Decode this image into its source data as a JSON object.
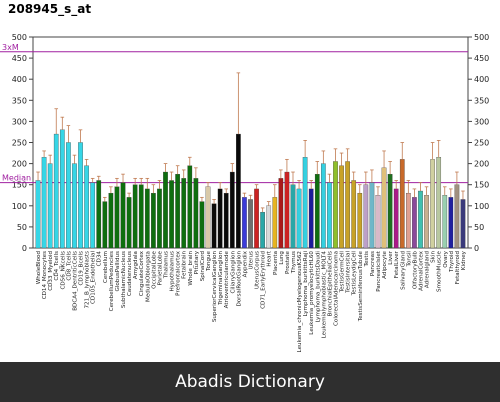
{
  "chart_data": {
    "type": "bar",
    "title": "208945_s_at",
    "ylim": [
      0,
      500
    ],
    "yticks": [
      0,
      50,
      100,
      150,
      200,
      250,
      300,
      350,
      400,
      450,
      500
    ],
    "grid": false,
    "reference_lines": [
      {
        "label": "3xM",
        "value": 465,
        "color": "#a020a0"
      },
      {
        "label": "Median",
        "value": 155,
        "color": "#a020a0"
      }
    ],
    "categories": [
      "WholeBlood",
      "CD14_Monocytes",
      "CD33_Myeloid",
      "CD4_Tcells",
      "CD56_NKcells",
      "CD8_Tcells",
      "BDCA4_DentriticCells",
      "CD19_Bcells",
      "721_B_lymphoblasts",
      "CD105_Endothelial",
      "CD34",
      "Cerebellum",
      "CerebellumPeduncles",
      "GlobusPallidus",
      "SubthalamicNucleus",
      "Caudatenucleus",
      "Amygdala",
      "CingulateCortex",
      "MedullaOblongata",
      "OccipitalLobe",
      "ParietalLobe",
      "Thalamus",
      "Hypothalamus",
      "Prefrontalcortex",
      "Fetalbrain",
      "Whole_brain",
      "Pituitary",
      "SpinalCord",
      "Tongue",
      "SuperiorCervicalGanglion",
      "TrigeminalGanglion",
      "Atrioventricularnode",
      "CiliaryGanglion",
      "DorsalRootGanglion",
      "Appendix",
      "Uterus",
      "UterusCorpus",
      "CD71_EarlyErythroid",
      "Heart",
      "Placenta",
      "Lung",
      "Prostate",
      "Thymus",
      "Leukemia_chronicMyelogenousK562",
      "Lymphoma_burkittsRaji",
      "Leukemia_promyelocyticHL60",
      "Lymphoma_burkittsDaudi",
      "Leukemialymphoblastic_MOLT4",
      "BronchialEpithelialCells",
      "ColorectalAdenocarcinoma",
      "TestisGermCell",
      "TestisIntersitial",
      "TestisLeydigCell",
      "TestisSeminiferousTubule",
      "Testis",
      "Pancreas",
      "PancreaticIslet",
      "Adipocyte",
      "Liver",
      "FetalLiver",
      "SalivaryGland",
      "Tonsil",
      "OlfactoryBulb",
      "AdrenalCortex",
      "Adrenalgland",
      "Skin",
      "SmoothMuscle",
      "Ovary",
      "Thyroid",
      "Fetalthyroid",
      "Kidney"
    ],
    "visible_xtick_labels": [
      "WholeBlood",
      "CD14_Monocytes",
      "CD33_Myeloid",
      "CD4_Tcells",
      "CD56_NKcells",
      "CD8_Tcells",
      "BDCA4_DentriticCells",
      "CD19_Bcells",
      "721_B_lymphoblasts",
      "CD105_Endothelial",
      "CD34",
      "Cerebellum",
      "CerebellumPeduncles",
      "GlobusPallidus",
      "SubthalamicNucleus",
      "Caudatenucleus",
      "Amygdala",
      "CingulateCortex",
      "MedullaOblongata",
      "OccipitalLobe",
      "ParietalLobe",
      "Thalamus",
      "Hypothalamus",
      "Prefrontalcortex",
      "Fetalbrain",
      "Whole_brain",
      "Pituitary",
      "SpinalCord",
      "Tongue",
      "SuperiorCervicalGanglion",
      "TrigeminalGanglion",
      "Atrioventricularnode",
      "CiliaryGanglion",
      "DorsalRootGanglion",
      "Appendix",
      "Uterus",
      "UterusCorpus",
      "CD71_EarlyErythroid",
      "Heart",
      "Placenta",
      "Lung",
      "Prostate",
      "Thymus",
      "Leukemia_chronicMyelogenousK562",
      "Lymphoma_burkittsRaji",
      "Leukemia_promyelocyticHL60",
      "Lymphoma_burkittsDaudi",
      "Leukemialymphoblastic_MOLT4",
      "BronchialEpithelialCells",
      "ColorectalAdenocarcinoma",
      "TestisGermCell",
      "TestisIntersitial",
      "TestisLeydigCell",
      "TestisSeminiferousTubule",
      "Testis",
      "Pancreas",
      "PancreaticIslet",
      "Adipocyte",
      "Liver",
      "FetalLiver",
      "SalivaryGland",
      "Tonsil",
      "OlfactoryBulb",
      "AdrenalCortex",
      "Adrenalgland",
      "Skin",
      "SmoothMuscle",
      "Ovary",
      "Thyroid",
      "Fetalthyroid",
      "Kidney"
    ],
    "values": [
      160,
      215,
      200,
      270,
      280,
      250,
      200,
      250,
      195,
      155,
      160,
      110,
      130,
      145,
      155,
      120,
      150,
      150,
      140,
      130,
      140,
      180,
      160,
      175,
      165,
      195,
      165,
      110,
      145,
      105,
      140,
      130,
      180,
      270,
      120,
      115,
      140,
      85,
      100,
      120,
      165,
      180,
      150,
      140,
      215,
      140,
      175,
      200,
      155,
      205,
      195,
      205,
      160,
      130,
      150,
      155,
      125,
      190,
      175,
      140,
      210,
      130,
      120,
      135,
      125,
      210,
      215,
      125,
      120,
      150,
      115
    ],
    "errors": [
      20,
      15,
      20,
      60,
      30,
      40,
      20,
      30,
      15,
      10,
      10,
      10,
      15,
      20,
      20,
      10,
      15,
      15,
      25,
      20,
      20,
      20,
      20,
      20,
      20,
      20,
      25,
      10,
      10,
      10,
      15,
      10,
      20,
      145,
      10,
      10,
      10,
      10,
      10,
      30,
      20,
      30,
      30,
      20,
      40,
      20,
      30,
      30,
      20,
      30,
      30,
      30,
      20,
      20,
      30,
      30,
      20,
      40,
      30,
      20,
      40,
      30,
      20,
      20,
      20,
      40,
      40,
      20,
      20,
      30,
      20
    ],
    "colors": [
      "#36d6e6",
      "#36d6e6",
      "#36d6e6",
      "#36d6e6",
      "#36d6e6",
      "#36d6e6",
      "#36d6e6",
      "#36d6e6",
      "#36d6e6",
      "#36d6e6",
      "#0f6e0f",
      "#0f6e0f",
      "#0f6e0f",
      "#0f6e0f",
      "#0f6e0f",
      "#0f6e0f",
      "#0f6e0f",
      "#0f6e0f",
      "#0f6e0f",
      "#0f6e0f",
      "#0f6e0f",
      "#0f6e0f",
      "#0f6e0f",
      "#0f6e0f",
      "#0f6e0f",
      "#0f6e0f",
      "#0f6e0f",
      "#0f6e0f",
      "#d9c9a8",
      "#0a0a0a",
      "#0a0a0a",
      "#0a0a0a",
      "#0a0a0a",
      "#0a0a0a",
      "#3b3bd9",
      "#6e6e6e",
      "#cc2222",
      "#2aa7a7",
      "#d9d9d9",
      "#e6b422",
      "#aa1a1a",
      "#cc2222",
      "#2aa7a7",
      "#35d0e0",
      "#35d0e0",
      "#1b1b99",
      "#0f6e0f",
      "#35d0e0",
      "#35d0e0",
      "#8fbf2a",
      "#c8a227",
      "#c8a227",
      "#c8a227",
      "#c8a227",
      "#bda0c8",
      "#6fb7c8",
      "#d9b9c8",
      "#e0c07a",
      "#1f6f1f",
      "#aa1a88",
      "#c86a2a",
      "#e0a090",
      "#8a4a9a",
      "#40c0b0",
      "#c8b090",
      "#d0d0a0",
      "#b8c8a0",
      "#9ad0b0",
      "#2020a0",
      "#a09080",
      "#3a3a7a"
    ]
  },
  "footer": {
    "text": "Abadis Dictionary"
  }
}
